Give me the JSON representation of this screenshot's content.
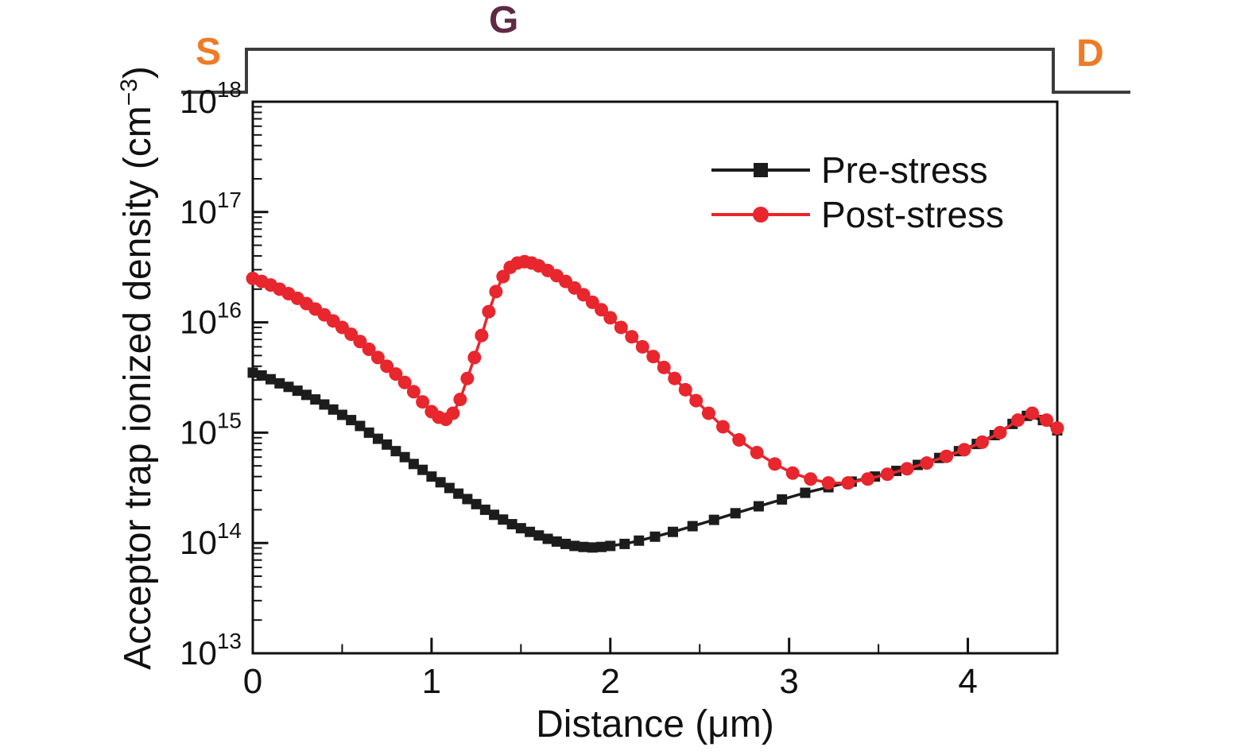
{
  "figure": {
    "background": "#ffffff",
    "ink_color": "#111111"
  },
  "schematic": {
    "source_label": "S",
    "gate_label": "G",
    "drain_label": "D",
    "source_color": "#ee7b25",
    "gate_color": "#5e2a44",
    "drain_color": "#ee7b25",
    "outline_color": "#3c3c3c"
  },
  "chart_data": {
    "type": "line",
    "title": "",
    "xlabel": "Distance (μm)",
    "ylabel": "Acceptor trap ionized density (cm⁻³)",
    "ylabel_parts": {
      "pre": "Acceptor trap ionized density (cm",
      "sup": "−3",
      "post": ")"
    },
    "xlim": [
      0,
      4.5
    ],
    "xticks_major": [
      0,
      1,
      2,
      3,
      4
    ],
    "xticks_minor_step": 0.5,
    "yscale": "log",
    "ylog_range": [
      13,
      18
    ],
    "ytick_base": "10",
    "ytick_exponents": [
      13,
      14,
      15,
      16,
      17,
      18
    ],
    "grid": false,
    "legend_position": "top-right-inside",
    "series": [
      {
        "name": "Pre-stress",
        "color": "#1c1c1c",
        "marker": "square",
        "points": [
          [
            0.0,
            3500000000000000.0
          ],
          [
            0.05,
            3300000000000000.0
          ],
          [
            0.1,
            3050000000000000.0
          ],
          [
            0.15,
            2800000000000000.0
          ],
          [
            0.2,
            2600000000000000.0
          ],
          [
            0.25,
            2400000000000000.0
          ],
          [
            0.3,
            2200000000000000.0
          ],
          [
            0.35,
            2000000000000000.0
          ],
          [
            0.4,
            1800000000000000.0
          ],
          [
            0.45,
            1620000000000000.0
          ],
          [
            0.5,
            1450000000000000.0
          ],
          [
            0.55,
            1300000000000000.0
          ],
          [
            0.6,
            1150000000000000.0
          ],
          [
            0.65,
            1000000000000000.0
          ],
          [
            0.7,
            880000000000000.0
          ],
          [
            0.75,
            780000000000000.0
          ],
          [
            0.8,
            680000000000000.0
          ],
          [
            0.85,
            600000000000000.0
          ],
          [
            0.9,
            520000000000000.0
          ],
          [
            0.95,
            460000000000000.0
          ],
          [
            1.0,
            400000000000000.0
          ],
          [
            1.05,
            355000000000000.0
          ],
          [
            1.1,
            315000000000000.0
          ],
          [
            1.15,
            280000000000000.0
          ],
          [
            1.2,
            250000000000000.0
          ],
          [
            1.25,
            225000000000000.0
          ],
          [
            1.3,
            200000000000000.0
          ],
          [
            1.35,
            180000000000000.0
          ],
          [
            1.4,
            163000000000000.0
          ],
          [
            1.45,
            148000000000000.0
          ],
          [
            1.5,
            136000000000000.0
          ],
          [
            1.55,
            126000000000000.0
          ],
          [
            1.6,
            117000000000000.0
          ],
          [
            1.65,
            109000000000000.0
          ],
          [
            1.7,
            103000000000000.0
          ],
          [
            1.75,
            98000000000000.0
          ],
          [
            1.8,
            94000000000000.0
          ],
          [
            1.85,
            92000000000000.0
          ],
          [
            1.9,
            91000000000000.0
          ],
          [
            1.95,
            92000000000000.0
          ],
          [
            2.0,
            94000000000000.0
          ],
          [
            2.08,
            98000000000000.0
          ],
          [
            2.16,
            105000000000000.0
          ],
          [
            2.25,
            114000000000000.0
          ],
          [
            2.35,
            126000000000000.0
          ],
          [
            2.46,
            142000000000000.0
          ],
          [
            2.58,
            162000000000000.0
          ],
          [
            2.7,
            186000000000000.0
          ],
          [
            2.83,
            215000000000000.0
          ],
          [
            2.96,
            248000000000000.0
          ],
          [
            3.09,
            285000000000000.0
          ],
          [
            3.22,
            320000000000000.0
          ],
          [
            3.35,
            360000000000000.0
          ],
          [
            3.48,
            400000000000000.0
          ],
          [
            3.6,
            450000000000000.0
          ],
          [
            3.72,
            510000000000000.0
          ],
          [
            3.84,
            590000000000000.0
          ],
          [
            3.95,
            680000000000000.0
          ],
          [
            4.05,
            790000000000000.0
          ],
          [
            4.15,
            950000000000000.0
          ],
          [
            4.25,
            1200000000000000.0
          ],
          [
            4.33,
            1420000000000000.0
          ],
          [
            4.42,
            1300000000000000.0
          ],
          [
            4.5,
            1050000000000000.0
          ]
        ]
      },
      {
        "name": "Post-stress",
        "color": "#e8262d",
        "marker": "circle",
        "points": [
          [
            0.0,
            2.5e+16
          ],
          [
            0.05,
            2.35e+16
          ],
          [
            0.1,
            2.18e+16
          ],
          [
            0.15,
            2e+16
          ],
          [
            0.2,
            1.82e+16
          ],
          [
            0.25,
            1.65e+16
          ],
          [
            0.3,
            1.48e+16
          ],
          [
            0.35,
            1.32e+16
          ],
          [
            0.4,
            1.17e+16
          ],
          [
            0.45,
            1.03e+16
          ],
          [
            0.5,
            9000000000000000.0
          ],
          [
            0.55,
            7800000000000000.0
          ],
          [
            0.6,
            6700000000000000.0
          ],
          [
            0.65,
            5700000000000000.0
          ],
          [
            0.7,
            4800000000000000.0
          ],
          [
            0.75,
            4000000000000000.0
          ],
          [
            0.8,
            3400000000000000.0
          ],
          [
            0.85,
            2850000000000000.0
          ],
          [
            0.9,
            2350000000000000.0
          ],
          [
            0.95,
            1900000000000000.0
          ],
          [
            1.0,
            1550000000000000.0
          ],
          [
            1.04,
            1380000000000000.0
          ],
          [
            1.08,
            1320000000000000.0
          ],
          [
            1.12,
            1500000000000000.0
          ],
          [
            1.16,
            2000000000000000.0
          ],
          [
            1.2,
            3100000000000000.0
          ],
          [
            1.24,
            4800000000000000.0
          ],
          [
            1.28,
            7600000000000000.0
          ],
          [
            1.32,
            1.25e+16
          ],
          [
            1.36,
            1.9e+16
          ],
          [
            1.4,
            2.6e+16
          ],
          [
            1.44,
            3.15e+16
          ],
          [
            1.48,
            3.45e+16
          ],
          [
            1.52,
            3.55e+16
          ],
          [
            1.56,
            3.45e+16
          ],
          [
            1.6,
            3.25e+16
          ],
          [
            1.65,
            2.95e+16
          ],
          [
            1.7,
            2.65e+16
          ],
          [
            1.75,
            2.35e+16
          ],
          [
            1.8,
            2.05e+16
          ],
          [
            1.85,
            1.78e+16
          ],
          [
            1.9,
            1.52e+16
          ],
          [
            1.95,
            1.3e+16
          ],
          [
            2.0,
            1.1e+16
          ],
          [
            2.06,
            9000000000000000.0
          ],
          [
            2.12,
            7400000000000000.0
          ],
          [
            2.18,
            6000000000000000.0
          ],
          [
            2.24,
            4900000000000000.0
          ],
          [
            2.3,
            3900000000000000.0
          ],
          [
            2.36,
            3100000000000000.0
          ],
          [
            2.42,
            2450000000000000.0
          ],
          [
            2.48,
            1950000000000000.0
          ],
          [
            2.55,
            1500000000000000.0
          ],
          [
            2.63,
            1130000000000000.0
          ],
          [
            2.72,
            860000000000000.0
          ],
          [
            2.82,
            660000000000000.0
          ],
          [
            2.92,
            520000000000000.0
          ],
          [
            3.02,
            430000000000000.0
          ],
          [
            3.12,
            380000000000000.0
          ],
          [
            3.22,
            350000000000000.0
          ],
          [
            3.33,
            350000000000000.0
          ],
          [
            3.44,
            380000000000000.0
          ],
          [
            3.55,
            420000000000000.0
          ],
          [
            3.66,
            470000000000000.0
          ],
          [
            3.77,
            530000000000000.0
          ],
          [
            3.88,
            610000000000000.0
          ],
          [
            3.98,
            700000000000000.0
          ],
          [
            4.08,
            820000000000000.0
          ],
          [
            4.18,
            1000000000000000.0
          ],
          [
            4.28,
            1300000000000000.0
          ],
          [
            4.36,
            1500000000000000.0
          ],
          [
            4.44,
            1300000000000000.0
          ],
          [
            4.5,
            1100000000000000.0
          ]
        ]
      }
    ]
  }
}
